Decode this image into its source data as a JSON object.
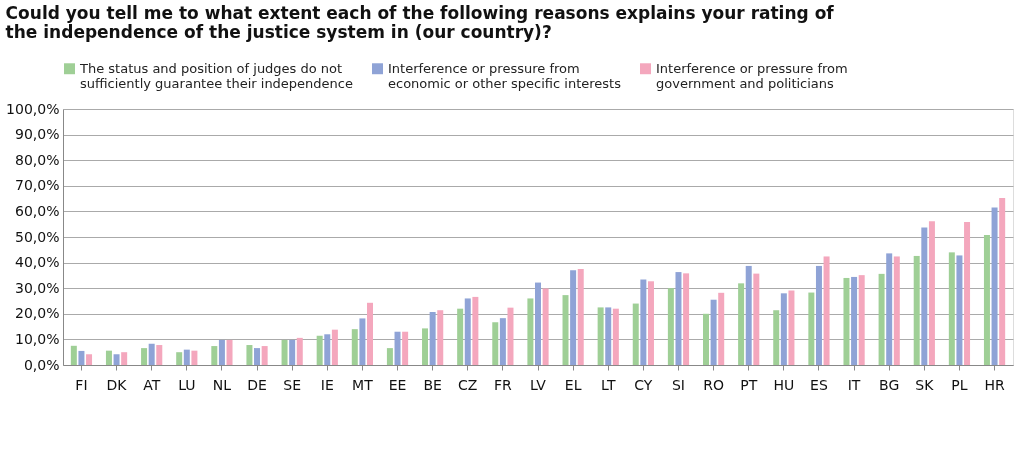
{
  "chart_data": {
    "type": "bar",
    "title": "Could you tell me to what extent each of the following reasons explains your rating of the independence of the justice system in (our country)?",
    "categories": [
      "FI",
      "DK",
      "AT",
      "LU",
      "NL",
      "DE",
      "SE",
      "IE",
      "MT",
      "EE",
      "BE",
      "CZ",
      "FR",
      "LV",
      "EL",
      "LT",
      "CY",
      "SI",
      "RO",
      "PT",
      "HU",
      "ES",
      "IT",
      "BG",
      "SK",
      "PL",
      "HR"
    ],
    "series": [
      {
        "name": "The status and position of judges do not sufficiently guarantee their independence",
        "color": "#9fcf96",
        "values": [
          7.5,
          5.6,
          6.6,
          5.0,
          7.4,
          7.8,
          9.8,
          11.4,
          14.0,
          6.6,
          14.3,
          22.0,
          16.7,
          26.0,
          27.3,
          22.5,
          24.0,
          30.0,
          20.0,
          31.9,
          21.4,
          28.3,
          34.0,
          35.6,
          42.6,
          44.0,
          50.8
        ]
      },
      {
        "name": "Interference or pressure from economic or other specific interests",
        "color": "#8fa3d6",
        "values": [
          5.5,
          4.2,
          8.3,
          6.0,
          9.8,
          6.6,
          9.8,
          12.0,
          18.2,
          13.0,
          20.7,
          26.0,
          18.3,
          32.2,
          37.0,
          22.5,
          33.4,
          36.3,
          25.5,
          38.7,
          28.0,
          38.7,
          34.4,
          43.6,
          53.7,
          42.8,
          61.5
        ]
      },
      {
        "name": "Interference or pressure from government and politicians",
        "color": "#f4a7bd",
        "values": [
          4.2,
          5.0,
          7.8,
          5.6,
          9.8,
          7.4,
          10.6,
          13.8,
          24.3,
          13.0,
          21.4,
          26.6,
          22.4,
          29.9,
          37.5,
          22.0,
          32.7,
          35.8,
          28.2,
          35.7,
          29.1,
          42.4,
          35.1,
          42.4,
          56.2,
          55.9,
          65.2
        ]
      }
    ],
    "ylim": [
      0,
      100
    ],
    "yticks": [
      {
        "value": 0,
        "label": "0,0%"
      },
      {
        "value": 10,
        "label": "10,0%"
      },
      {
        "value": 20,
        "label": "20,0%"
      },
      {
        "value": 30,
        "label": "30,0%"
      },
      {
        "value": 40,
        "label": "40,0%"
      },
      {
        "value": 50,
        "label": "50,0%"
      },
      {
        "value": 60,
        "label": "60,0%"
      },
      {
        "value": 70,
        "label": "70,0%"
      },
      {
        "value": 80,
        "label": "80,0%"
      },
      {
        "value": 90,
        "label": "90,0%"
      },
      {
        "value": 100,
        "label": "100,0%"
      }
    ],
    "grid": "y",
    "legend": "top"
  }
}
